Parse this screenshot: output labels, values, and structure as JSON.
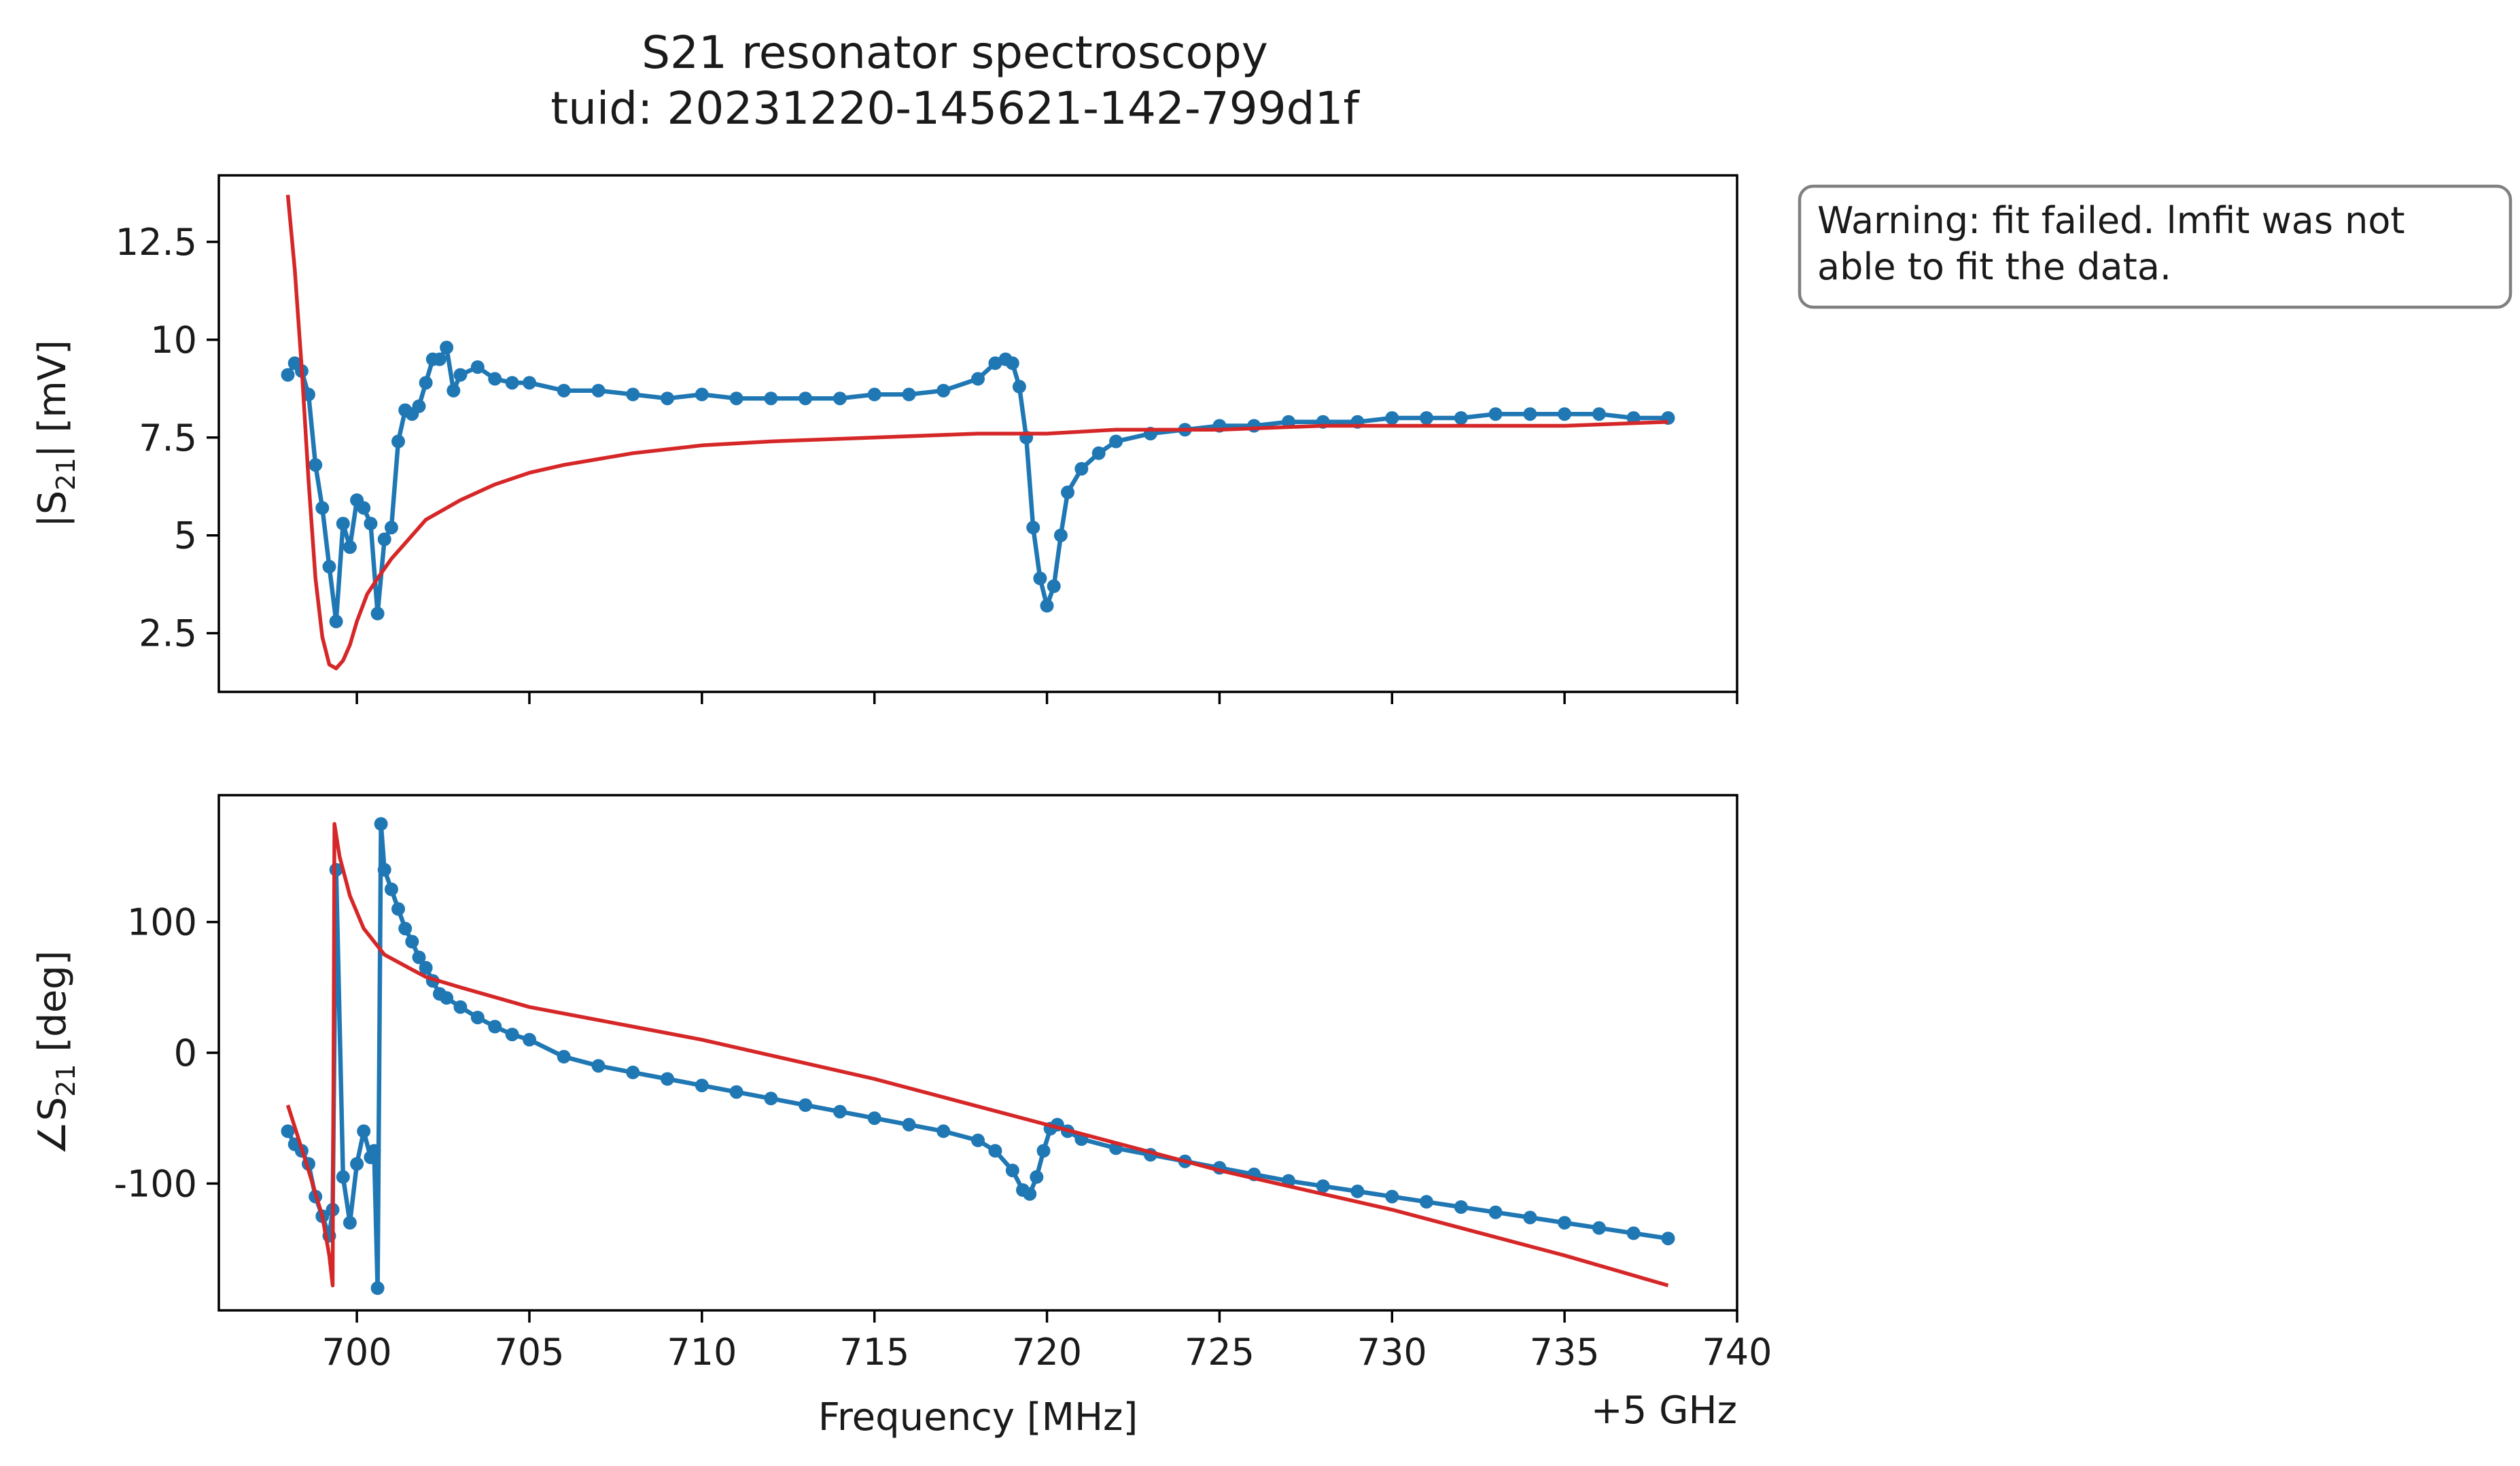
{
  "figure": {
    "title_line1": "S21 resonator spectroscopy",
    "title_line2": "tuid: 20231220-145621-142-799d1f",
    "warning": {
      "line1": "Warning: fit failed. lmfit was not",
      "line2": "able to fit the data."
    },
    "offset_label": "+5 GHz"
  },
  "colors": {
    "data": "#1f77b4",
    "fit": "#d62728"
  },
  "chart_data": [
    {
      "type": "line",
      "ylabel_prefix": "|S",
      "ylabel_sub": "21",
      "ylabel_suffix": "| [mV]",
      "xlim": [
        696,
        740
      ],
      "ylim": [
        1.0,
        14.2
      ],
      "x_ticks": [
        700,
        705,
        710,
        715,
        720,
        725,
        730,
        735,
        740
      ],
      "y_ticks": [
        {
          "v": 2.5,
          "label": "2.5"
        },
        {
          "v": 5,
          "label": "5"
        },
        {
          "v": 7.5,
          "label": "7.5"
        },
        {
          "v": 10,
          "label": "10"
        },
        {
          "v": 12.5,
          "label": "12.5"
        }
      ],
      "series": [
        {
          "style": "markers+line",
          "x": [
            698.0,
            698.2,
            698.4,
            698.6,
            698.8,
            699.0,
            699.2,
            699.4,
            699.6,
            699.8,
            700.0,
            700.2,
            700.4,
            700.6,
            700.8,
            701.0,
            701.2,
            701.4,
            701.6,
            701.8,
            702.0,
            702.2,
            702.4,
            702.6,
            702.8,
            703.0,
            703.5,
            704.0,
            704.5,
            705.0,
            706.0,
            707.0,
            708.0,
            709.0,
            710.0,
            711.0,
            712.0,
            713.0,
            714.0,
            715.0,
            716.0,
            717.0,
            718.0,
            718.5,
            718.8,
            719.0,
            719.2,
            719.4,
            719.6,
            719.8,
            720.0,
            720.2,
            720.4,
            720.6,
            721.0,
            721.5,
            722.0,
            723.0,
            724.0,
            725.0,
            726.0,
            727.0,
            728.0,
            729.0,
            730.0,
            731.0,
            732.0,
            733.0,
            734.0,
            735.0,
            736.0,
            737.0,
            738.0
          ],
          "y": [
            9.1,
            9.4,
            9.2,
            8.6,
            6.8,
            5.7,
            4.2,
            2.8,
            5.3,
            4.7,
            5.9,
            5.7,
            5.3,
            3.0,
            4.9,
            5.2,
            7.4,
            8.2,
            8.1,
            8.3,
            8.9,
            9.5,
            9.5,
            9.8,
            8.7,
            9.1,
            9.3,
            9.0,
            8.9,
            8.9,
            8.7,
            8.7,
            8.6,
            8.5,
            8.6,
            8.5,
            8.5,
            8.5,
            8.5,
            8.6,
            8.6,
            8.7,
            9.0,
            9.4,
            9.5,
            9.4,
            8.8,
            7.5,
            5.2,
            3.9,
            3.2,
            3.7,
            5.0,
            6.1,
            6.7,
            7.1,
            7.4,
            7.6,
            7.7,
            7.8,
            7.8,
            7.9,
            7.9,
            7.9,
            8.0,
            8.0,
            8.0,
            8.1,
            8.1,
            8.1,
            8.1,
            8.0,
            8.0
          ]
        },
        {
          "style": "line",
          "x": [
            698.0,
            698.2,
            698.4,
            698.6,
            698.8,
            699.0,
            699.2,
            699.4,
            699.6,
            699.8,
            700.0,
            700.3,
            700.6,
            701.0,
            701.5,
            702.0,
            703.0,
            704.0,
            705.0,
            706.0,
            708.0,
            710.0,
            712.0,
            715.0,
            718.0,
            720.0,
            722.0,
            725.0,
            728.0,
            730.0,
            732.0,
            735.0,
            738.0
          ],
          "y": [
            13.7,
            11.8,
            9.3,
            6.4,
            3.9,
            2.4,
            1.7,
            1.6,
            1.8,
            2.2,
            2.8,
            3.5,
            3.9,
            4.4,
            4.9,
            5.4,
            5.9,
            6.3,
            6.6,
            6.8,
            7.1,
            7.3,
            7.4,
            7.5,
            7.6,
            7.6,
            7.7,
            7.7,
            7.8,
            7.8,
            7.8,
            7.8,
            7.9
          ]
        }
      ]
    },
    {
      "type": "line",
      "ylabel_prefix": "∠S",
      "ylabel_sub": "21",
      "ylabel_suffix": " [deg]",
      "xlabel": "Frequency [MHz]",
      "xlim": [
        696,
        740
      ],
      "ylim": [
        -197,
        197
      ],
      "x_ticks": [
        700,
        705,
        710,
        715,
        720,
        725,
        730,
        735,
        740
      ],
      "y_ticks": [
        {
          "v": -100,
          "label": "-100"
        },
        {
          "v": 0,
          "label": "0"
        },
        {
          "v": 100,
          "label": "100"
        }
      ],
      "series": [
        {
          "style": "markers+line",
          "x": [
            698.0,
            698.2,
            698.4,
            698.6,
            698.8,
            699.0,
            699.2,
            699.3,
            699.4,
            699.6,
            699.8,
            700.0,
            700.2,
            700.4,
            700.5,
            700.6,
            700.7,
            700.8,
            701.0,
            701.2,
            701.4,
            701.6,
            701.8,
            702.0,
            702.2,
            702.4,
            702.6,
            703.0,
            703.5,
            704.0,
            704.5,
            705.0,
            706.0,
            707.0,
            708.0,
            709.0,
            710.0,
            711.0,
            712.0,
            713.0,
            714.0,
            715.0,
            716.0,
            717.0,
            718.0,
            718.5,
            719.0,
            719.3,
            719.5,
            719.7,
            719.9,
            720.1,
            720.3,
            720.6,
            721.0,
            722.0,
            723.0,
            724.0,
            725.0,
            726.0,
            727.0,
            728.0,
            729.0,
            730.0,
            731.0,
            732.0,
            733.0,
            734.0,
            735.0,
            736.0,
            737.0,
            738.0
          ],
          "y": [
            -60,
            -70,
            -75,
            -85,
            -110,
            -125,
            -140,
            -120,
            140,
            -95,
            -130,
            -85,
            -60,
            -80,
            -75,
            -180,
            175,
            140,
            125,
            110,
            95,
            85,
            73,
            65,
            55,
            45,
            42,
            35,
            27,
            20,
            14,
            10,
            -3,
            -10,
            -15,
            -20,
            -25,
            -30,
            -35,
            -40,
            -45,
            -50,
            -55,
            -60,
            -67,
            -75,
            -90,
            -105,
            -108,
            -95,
            -75,
            -58,
            -55,
            -60,
            -66,
            -73,
            -78,
            -83,
            -88,
            -93,
            -98,
            -102,
            -106,
            -110,
            -114,
            -118,
            -122,
            -126,
            -130,
            -134,
            -138,
            -142
          ]
        },
        {
          "style": "line",
          "x": [
            698.0,
            698.6,
            699.0,
            699.2,
            699.3,
            699.35,
            699.5,
            699.8,
            700.2,
            700.8,
            701.5,
            702.0,
            703.0,
            705.0,
            708.0,
            710.0,
            715.0,
            720.0,
            725.0,
            730.0,
            735.0,
            738.0
          ],
          "y": [
            -40,
            -90,
            -125,
            -155,
            -178,
            175,
            150,
            120,
            95,
            75,
            65,
            58,
            50,
            35,
            20,
            10,
            -20,
            -55,
            -90,
            -120,
            -155,
            -178
          ]
        }
      ]
    }
  ]
}
